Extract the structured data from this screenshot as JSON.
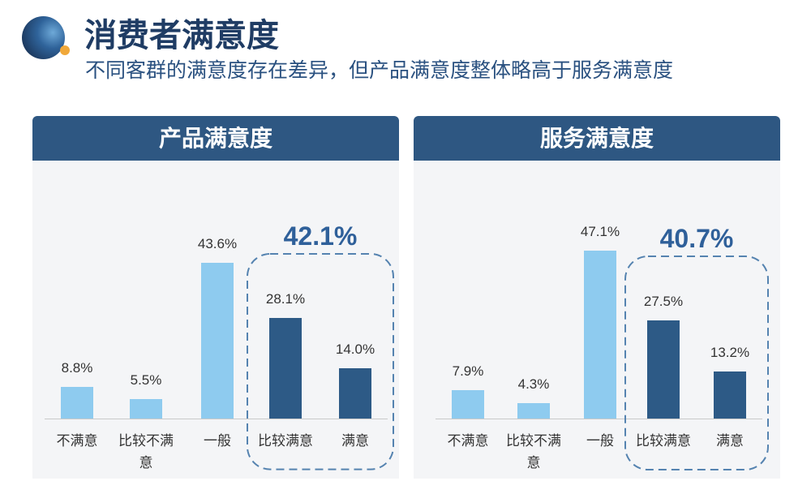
{
  "header": {
    "title": "消费者满意度",
    "subtitle": "不同客群的满意度存在差异，但产品满意度整体略高于服务满意度"
  },
  "logo": {
    "icon": "sphere-logo-icon"
  },
  "colors": {
    "title_text": "#1f3c64",
    "subtitle_text": "#2a5180",
    "header_bg": "#2e5782",
    "header_text": "#ffffff",
    "panel_bg": "#f4f5f7",
    "bar_light": "#8ecbef",
    "bar_dark": "#2d5a86",
    "highlight_text": "#2f609a",
    "highlight_border": "#5583b0",
    "label_text": "#333333",
    "baseline": "#c9c9c9",
    "logo_dot": "#f0a83a"
  },
  "chart_data": [
    {
      "type": "bar",
      "title": "产品满意度",
      "categories": [
        "不满意",
        "比较不满意",
        "一般",
        "比较满意",
        "满意"
      ],
      "values": [
        8.8,
        5.5,
        43.6,
        28.1,
        14.0
      ],
      "value_labels": [
        "8.8%",
        "5.5%",
        "43.6%",
        "28.1%",
        "14.0%"
      ],
      "ylim": [
        0,
        50
      ],
      "grid": false,
      "legend": "none",
      "highlight": {
        "categories": [
          "比较满意",
          "满意"
        ],
        "total": 42.1,
        "total_label": "42.1%"
      }
    },
    {
      "type": "bar",
      "title": "服务满意度",
      "categories": [
        "不满意",
        "比较不满意",
        "一般",
        "比较满意",
        "满意"
      ],
      "values": [
        7.9,
        4.3,
        47.1,
        27.5,
        13.2
      ],
      "value_labels": [
        "7.9%",
        "4.3%",
        "47.1%",
        "27.5%",
        "13.2%"
      ],
      "ylim": [
        0,
        50
      ],
      "grid": false,
      "legend": "none",
      "highlight": {
        "categories": [
          "比较满意",
          "满意"
        ],
        "total": 40.7,
        "total_label": "40.7%"
      }
    }
  ]
}
